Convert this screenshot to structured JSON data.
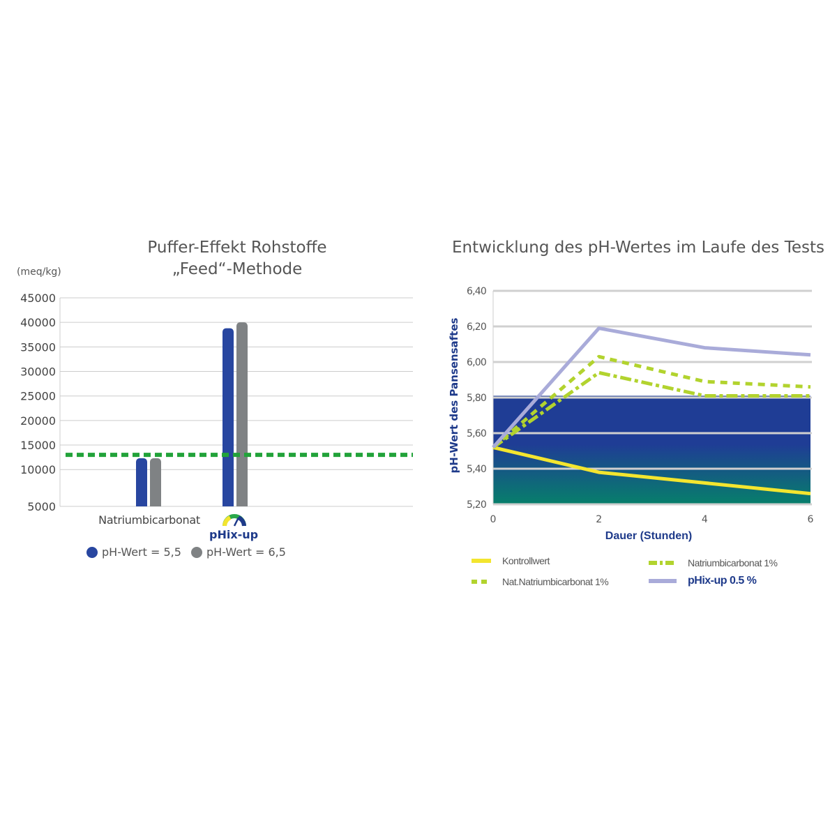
{
  "chart_data": [
    {
      "type": "bar",
      "title": "Puffer-Effekt Rohstoffe",
      "subtitle": "„Feed“-Methode",
      "ylabel": "(meq/kg)",
      "ylim": [
        2500,
        45000
      ],
      "yticks": [
        "45000",
        "40000",
        "35000",
        "30000",
        "25000",
        "20000",
        "15000",
        "10000",
        "5000"
      ],
      "categories": [
        "Natriumbicarbonat",
        "pHix-up"
      ],
      "series": [
        {
          "name": "pH-Wert = 5,5",
          "color": "#2846a0",
          "values": [
            12300,
            38800
          ]
        },
        {
          "name": "pH-Wert = 6,5",
          "color": "#7f8284",
          "values": [
            12300,
            40000
          ]
        }
      ],
      "reference_line": {
        "value": 13000,
        "color": "#22a33a"
      },
      "grid": true
    },
    {
      "type": "line",
      "title": "Entwicklung des pH-Wertes im Laufe des Tests",
      "xlabel": "Dauer (Stunden)",
      "ylabel": "pH-Wert des Pansensaftes",
      "x": [
        0,
        2,
        4,
        6
      ],
      "xticks": [
        "0",
        "2",
        "4",
        "6"
      ],
      "ylim": [
        5.2,
        6.4
      ],
      "yticks": [
        "6,40",
        "6,20",
        "6,00",
        "5,80",
        "5,60",
        "5,40",
        "5,20"
      ],
      "band": {
        "from": 5.2,
        "to": 5.81,
        "colors": [
          "#1f3d95",
          "#077f6b"
        ]
      },
      "series": [
        {
          "name": "Kontrollwert",
          "color": "#f3e52f",
          "style": "solid",
          "values": [
            5.52,
            5.38,
            5.32,
            5.26
          ]
        },
        {
          "name": "Nat.Natriumbicarbonat 1%",
          "color": "#b2d32e",
          "style": "dashed",
          "values": [
            5.52,
            6.03,
            5.89,
            5.86
          ]
        },
        {
          "name": "Natriumbicarbonat 1%",
          "color": "#b2d32e",
          "style": "dashdot",
          "values": [
            5.52,
            5.94,
            5.81,
            5.81
          ]
        },
        {
          "name": "pHix-up 0.5 %",
          "color": "#a9abd9",
          "style": "solid",
          "values": [
            5.52,
            6.19,
            6.08,
            6.04
          ]
        }
      ],
      "grid": true
    }
  ],
  "logo": {
    "text": "pHix-up",
    "colors": [
      "#1e3a8a",
      "#2aa84a",
      "#f3e52f"
    ]
  },
  "legend_left": [
    {
      "label": "pH-Wert = 5,5",
      "color": "#2846a0"
    },
    {
      "label": "pH-Wert = 6,5",
      "color": "#7f8284"
    }
  ],
  "legend_right": [
    {
      "label": "Kontrollwert"
    },
    {
      "label": "Natriumbicarbonat 1%"
    },
    {
      "label": "Nat.Natriumbicarbonat 1%"
    },
    {
      "label": "pHix-up 0.5 %"
    }
  ]
}
